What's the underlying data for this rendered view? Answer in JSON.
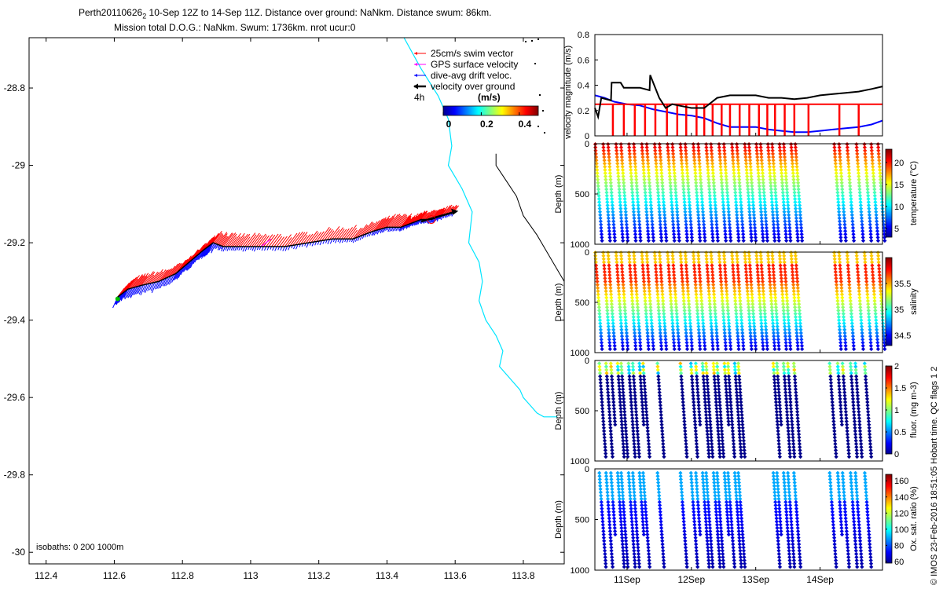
{
  "figure": {
    "title_line1": "Perth20110626",
    "title_sub": "2",
    "title_line1_rest": " 10-Sep 12Z to 14-Sep 11Z. Distance over ground: NaNkm. Distance swum: 86km.",
    "title_line2": "Mission total D.O.G.: NaNkm. Swum: 1736km. nrot ucur:0",
    "side_note": "© IMOS 23-Feb-2016 18:51:05 Hobart time. QC flags 1  2",
    "colors": {
      "coast": "#00e5ff",
      "isobath": "#000000",
      "swim": "#ff0000",
      "gps": "#ff00ff",
      "drift": "#0000ff",
      "dog": "#000000",
      "vel_blue": "#0000ff",
      "vel_red": "#ff0000",
      "vel_black": "#000000"
    }
  },
  "chart_data": [
    {
      "type": "map",
      "name": "track-map",
      "xlim": [
        112.35,
        113.92
      ],
      "ylim": [
        -30.03,
        -28.67
      ],
      "x_ticks": [
        112.4,
        112.6,
        112.8,
        113,
        113.2,
        113.4,
        113.6,
        113.8
      ],
      "x_tick_labels": [
        "112.4",
        "112.6",
        "112.8",
        "113",
        "113.2",
        "113.4",
        "113.6",
        "113.8"
      ],
      "y_ticks": [
        -28.8,
        -29,
        -29.2,
        -29.4,
        -29.6,
        -29.8,
        -30
      ],
      "y_tick_labels": [
        "-28.8",
        "-29",
        "-29.2",
        "-29.4",
        "-29.6",
        "-29.8",
        "-30"
      ],
      "isobath_note": "isobaths: 0   200  1000m",
      "legend": {
        "items": [
          "25cm/s swim vector",
          "GPS surface velocity",
          "dive-avg drift veloc.",
          "velocity over ground"
        ],
        "time_label": "4h",
        "colorbar_title": "(m/s)",
        "colorbar_ticks": [
          0,
          0.2,
          0.4
        ],
        "colorbar_tick_labels": [
          "0",
          "0.2",
          "0.4"
        ],
        "colorbar_range": [
          0,
          0.5
        ]
      },
      "track": {
        "lon": [
          112.61,
          112.64,
          112.68,
          112.73,
          112.78,
          112.82,
          112.86,
          112.89,
          112.92,
          112.97,
          113.03,
          113.1,
          113.17,
          113.24,
          113.3,
          113.36,
          113.4,
          113.44,
          113.47,
          113.5,
          113.53,
          113.56,
          113.6
        ],
        "lat": [
          -29.34,
          -29.32,
          -29.31,
          -29.3,
          -29.28,
          -29.25,
          -29.22,
          -29.2,
          -29.21,
          -29.21,
          -29.21,
          -29.21,
          -29.2,
          -29.19,
          -29.19,
          -29.17,
          -29.16,
          -29.16,
          -29.15,
          -29.14,
          -29.14,
          -29.13,
          -29.12
        ]
      },
      "coast_1000m": {
        "lon": [
          113.45,
          113.5,
          113.55,
          113.58,
          113.59,
          113.58,
          113.62,
          113.65,
          113.64,
          113.67,
          113.68,
          113.67,
          113.69,
          113.72,
          113.74,
          113.73,
          113.76,
          113.79,
          113.8,
          113.82,
          113.84,
          113.86,
          113.9
        ],
        "lat": [
          -28.67,
          -28.75,
          -28.82,
          -28.88,
          -28.95,
          -29.0,
          -29.06,
          -29.12,
          -29.2,
          -29.25,
          -29.3,
          -29.35,
          -29.4,
          -29.44,
          -29.48,
          -29.52,
          -29.55,
          -29.58,
          -29.6,
          -29.62,
          -29.64,
          -29.65,
          -29.65
        ]
      },
      "coast_200m": {
        "lon": [
          113.72,
          113.72,
          113.75,
          113.78,
          113.8,
          113.84,
          113.88,
          113.92
        ],
        "lat": [
          -28.97,
          -29.0,
          -29.04,
          -29.08,
          -29.13,
          -29.18,
          -29.24,
          -29.3
        ]
      }
    },
    {
      "type": "line",
      "name": "velocity-magnitude",
      "ylabel": "velocity magnitude (m/s)",
      "ylim": [
        0,
        0.8
      ],
      "y_ticks": [
        0,
        0.2,
        0.4,
        0.6,
        0.8
      ],
      "y_tick_labels": [
        "0",
        "0.2",
        "0.4",
        "0.6",
        "0.8"
      ],
      "xlim": [
        10.5,
        14.97
      ],
      "series": [
        {
          "color": "vel_blue",
          "x": [
            10.5,
            10.65,
            10.8,
            11.0,
            11.2,
            11.4,
            11.6,
            11.8,
            12.0,
            12.2,
            12.4,
            12.6,
            12.8,
            13.0,
            13.2,
            13.4,
            13.6,
            13.8,
            14.0,
            14.2,
            14.4,
            14.6,
            14.8,
            14.97
          ],
          "y": [
            0.32,
            0.3,
            0.27,
            0.25,
            0.24,
            0.21,
            0.19,
            0.17,
            0.16,
            0.14,
            0.1,
            0.07,
            0.07,
            0.07,
            0.05,
            0.04,
            0.03,
            0.03,
            0.04,
            0.05,
            0.06,
            0.07,
            0.09,
            0.12
          ]
        },
        {
          "color": "vel_black",
          "x": [
            10.5,
            10.55,
            10.6,
            10.75,
            10.76,
            10.9,
            10.95,
            11.2,
            11.35,
            11.36,
            11.5,
            11.6,
            11.7,
            11.8,
            12.0,
            12.2,
            12.4,
            12.6,
            12.8,
            13.0,
            13.2,
            13.4,
            13.6,
            13.8,
            14.0,
            14.2,
            14.4,
            14.6,
            14.8,
            14.97
          ],
          "y": [
            0.22,
            0.15,
            0.3,
            0.28,
            0.42,
            0.42,
            0.38,
            0.38,
            0.36,
            0.48,
            0.3,
            0.22,
            0.25,
            0.24,
            0.22,
            0.22,
            0.3,
            0.32,
            0.32,
            0.32,
            0.3,
            0.3,
            0.29,
            0.3,
            0.32,
            0.33,
            0.34,
            0.35,
            0.37,
            0.39
          ]
        },
        {
          "color": "vel_red",
          "x": [
            10.5,
            14.97
          ],
          "y": [
            0.25,
            0.25
          ],
          "spike_x": [
            10.78,
            10.95,
            11.12,
            11.28,
            11.44,
            11.62,
            11.78,
            11.92,
            12.08,
            12.2,
            12.33,
            12.47,
            12.6,
            12.75,
            12.9,
            13.05,
            13.18,
            13.3,
            13.45,
            13.6,
            13.82,
            14.3,
            14.6
          ]
        }
      ]
    },
    {
      "type": "scatter",
      "name": "temperature-section",
      "ylabel": "Depth (m)",
      "ylim": [
        1000,
        0
      ],
      "y_ticks": [
        0,
        500,
        1000
      ],
      "y_tick_labels": [
        "0",
        "500",
        "1000"
      ],
      "clabel": "temperature (°C)",
      "clim": [
        3,
        23
      ],
      "c_ticks": [
        5,
        10,
        15,
        20
      ],
      "c_tick_labels": [
        "5",
        "10",
        "15",
        "20"
      ]
    },
    {
      "type": "scatter",
      "name": "salinity-section",
      "ylabel": "Depth (m)",
      "ylim": [
        1000,
        0
      ],
      "y_ticks": [
        0,
        500,
        1000
      ],
      "y_tick_labels": [
        "0",
        "500",
        "1000"
      ],
      "clabel": "salinity",
      "clim": [
        34.3,
        36.0
      ],
      "c_ticks": [
        34.5,
        35,
        35.5
      ],
      "c_tick_labels": [
        "34.5",
        "35",
        "35.5"
      ]
    },
    {
      "type": "scatter",
      "name": "fluorescence-section",
      "ylabel": "Depth (m)",
      "ylim": [
        1000,
        0
      ],
      "y_ticks": [
        0,
        500,
        1000
      ],
      "y_tick_labels": [
        "0",
        "500",
        "1000"
      ],
      "clabel": "fluor. (mg m-3)",
      "clim": [
        0,
        2
      ],
      "c_ticks": [
        0,
        0.5,
        1,
        1.5,
        2
      ],
      "c_tick_labels": [
        "0",
        "0.5",
        "1",
        "1.5",
        "2"
      ]
    },
    {
      "type": "scatter",
      "name": "oxygen-section",
      "ylabel": "Depth (m)",
      "ylim": [
        1000,
        0
      ],
      "y_ticks": [
        0,
        500,
        1000
      ],
      "y_tick_labels": [
        "0",
        "500",
        "1000"
      ],
      "clabel": "Ox. sat. ratio (%)",
      "clim": [
        58,
        168
      ],
      "c_ticks": [
        60,
        80,
        100,
        120,
        140,
        160
      ],
      "c_tick_labels": [
        "60",
        "80",
        "100",
        "120",
        "140",
        "160"
      ],
      "x_ticks": [
        11,
        12,
        13,
        14
      ],
      "x_tick_labels": [
        "11Sep",
        "12Sep",
        "13Sep",
        "14Sep"
      ],
      "xlim": [
        10.5,
        14.97
      ]
    }
  ]
}
